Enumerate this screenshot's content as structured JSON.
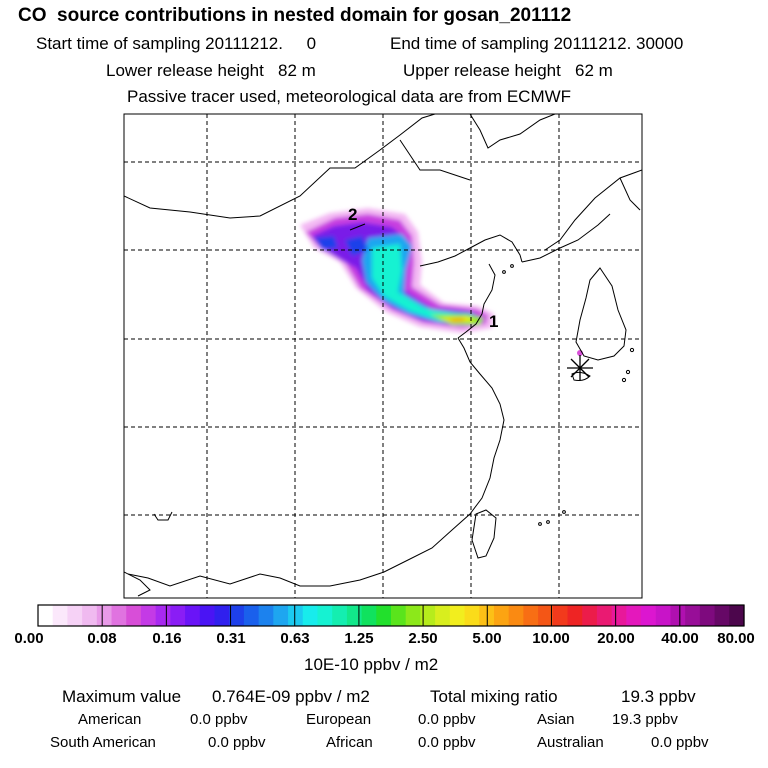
{
  "header": {
    "title": "CO  source contributions in nested domain for gosan_201112",
    "start_time": "Start time of sampling 20111212.     0",
    "end_time": "End time of sampling 20111212. 30000",
    "lower_height": "Lower release height   82 m",
    "upper_height": "Upper release height   62 m",
    "tracer_note": "Passive tracer used, meteorological data are from ECMWF"
  },
  "map": {
    "markers": [
      {
        "label": "1"
      },
      {
        "label": "2"
      }
    ],
    "receptor_symbol": "asterisk-receptor"
  },
  "colorbar": {
    "labels": [
      "0.00",
      "0.08",
      "0.16",
      "0.31",
      "0.63",
      "1.25",
      "2.50",
      "5.00",
      "10.00",
      "20.00",
      "40.00",
      "80.00"
    ],
    "unit": "10E-10 ppbv / m2",
    "colors": [
      "#ffffff",
      "#fbe8fb",
      "#f6d2f6",
      "#f0baf0",
      "#e89ae8",
      "#e073e0",
      "#d84ed8",
      "#c43ae6",
      "#a829f0",
      "#8a1df5",
      "#6a14f7",
      "#4a14f4",
      "#3020ee",
      "#1e40ea",
      "#1a60ec",
      "#1c82ee",
      "#1ea6f0",
      "#1ccaf0",
      "#18ecec",
      "#16f2d2",
      "#14eeb0",
      "#12e88a",
      "#10e25e",
      "#22e02c",
      "#5ae41c",
      "#8ce81a",
      "#b6ec1c",
      "#d8ee1e",
      "#f2ee1e",
      "#fadc1a",
      "#fcc016",
      "#fca412",
      "#fa8a12",
      "#f86e14",
      "#f45616",
      "#f23a1c",
      "#ee2424",
      "#ec1c4a",
      "#ea1a72",
      "#e8189a",
      "#e418bc",
      "#dc16d0",
      "#c814c8",
      "#b010b0",
      "#980e98",
      "#7e0a7e",
      "#660866",
      "#4c064c"
    ]
  },
  "summary": {
    "max_label": "Maximum value",
    "max_value": "0.764E-09 ppbv / m2",
    "total_label": "Total mixing ratio",
    "total_value": "19.3 ppbv",
    "regions": [
      {
        "name": "American",
        "value": "0.0 ppbv"
      },
      {
        "name": "European",
        "value": "0.0 ppbv"
      },
      {
        "name": "Asian",
        "value": "19.3 ppbv"
      },
      {
        "name": "South American",
        "value": "0.0 ppbv"
      },
      {
        "name": "African",
        "value": "0.0 ppbv"
      },
      {
        "name": "Australian",
        "value": "0.0 ppbv"
      }
    ]
  }
}
